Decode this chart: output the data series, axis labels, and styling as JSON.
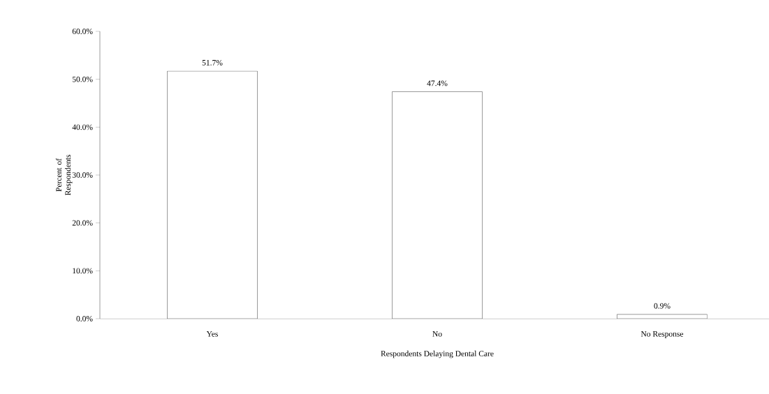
{
  "chart_data": {
    "type": "bar",
    "xlabel": "Respondents Delaying Dental Care",
    "ylabel": "Percent of Respondents",
    "categories": [
      "Yes",
      "No",
      "No Response"
    ],
    "values": [
      51.7,
      47.4,
      0.9
    ],
    "value_labels": [
      "51.7%",
      "47.4%",
      "0.9%"
    ],
    "color": "#ffffff",
    "ylim": [
      0,
      60
    ],
    "yticks": [
      {
        "value": 0,
        "label": "0.0%"
      },
      {
        "value": 10,
        "label": "10.0%"
      },
      {
        "value": 20,
        "label": "20.0%"
      },
      {
        "value": 30,
        "label": "30.0%"
      },
      {
        "value": 40,
        "label": "40.0%"
      },
      {
        "value": 50,
        "label": "50.0%"
      },
      {
        "value": 60,
        "label": "60.0%"
      }
    ],
    "grid": false
  }
}
